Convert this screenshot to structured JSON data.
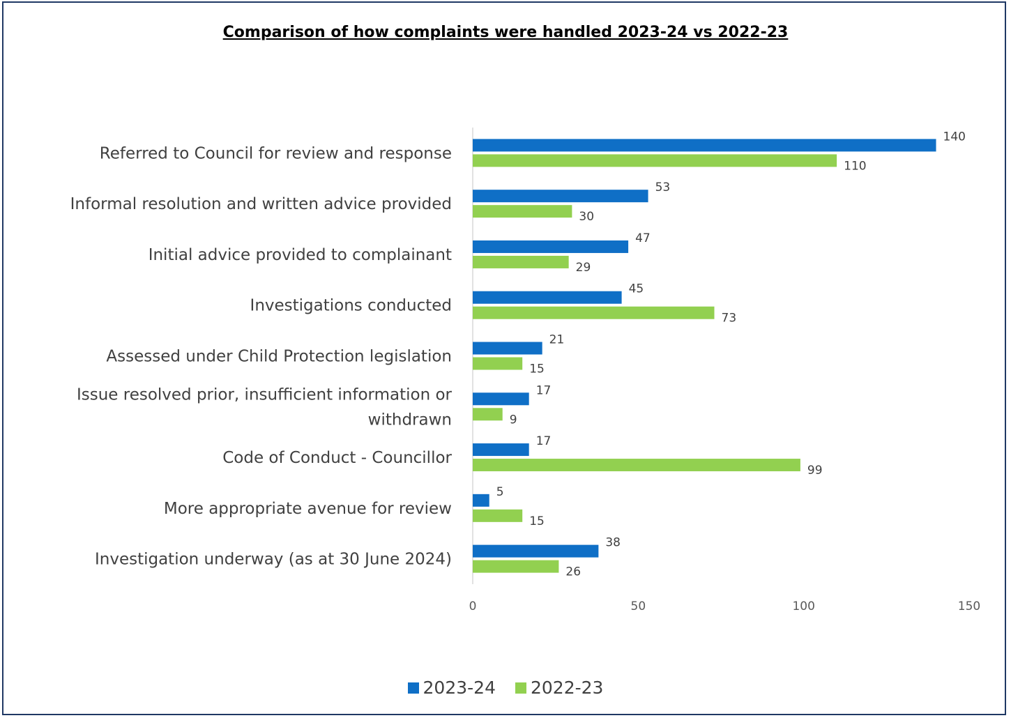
{
  "chart_data": {
    "type": "bar",
    "orientation": "horizontal",
    "title": "Comparison of how complaints were handled 2023-24 vs 2022-23",
    "categories": [
      [
        "Referred to Council for review and response"
      ],
      [
        "Informal resolution and written advice provided"
      ],
      [
        "Initial advice provided to complainant"
      ],
      [
        "Investigations conducted"
      ],
      [
        "Assessed under Child  Protection legislation"
      ],
      [
        "Issue resolved prior, insufficient information or",
        "withdrawn"
      ],
      [
        "Code of Conduct - Councillor"
      ],
      [
        "More appropriate avenue for review"
      ],
      [
        "Investigation underway (as at 30 June 2024)"
      ]
    ],
    "series": [
      {
        "name": "2023-24",
        "color": "#0f6fc6",
        "values": [
          140,
          53,
          47,
          45,
          21,
          17,
          17,
          5,
          38
        ]
      },
      {
        "name": "2022-23",
        "color": "#92d050",
        "values": [
          110,
          30,
          29,
          73,
          15,
          9,
          99,
          15,
          26
        ]
      }
    ],
    "xlim": [
      0,
      150
    ],
    "xticks": [
      "0",
      "50",
      "100",
      "150"
    ],
    "grid": false,
    "legend_position": "bottom"
  }
}
